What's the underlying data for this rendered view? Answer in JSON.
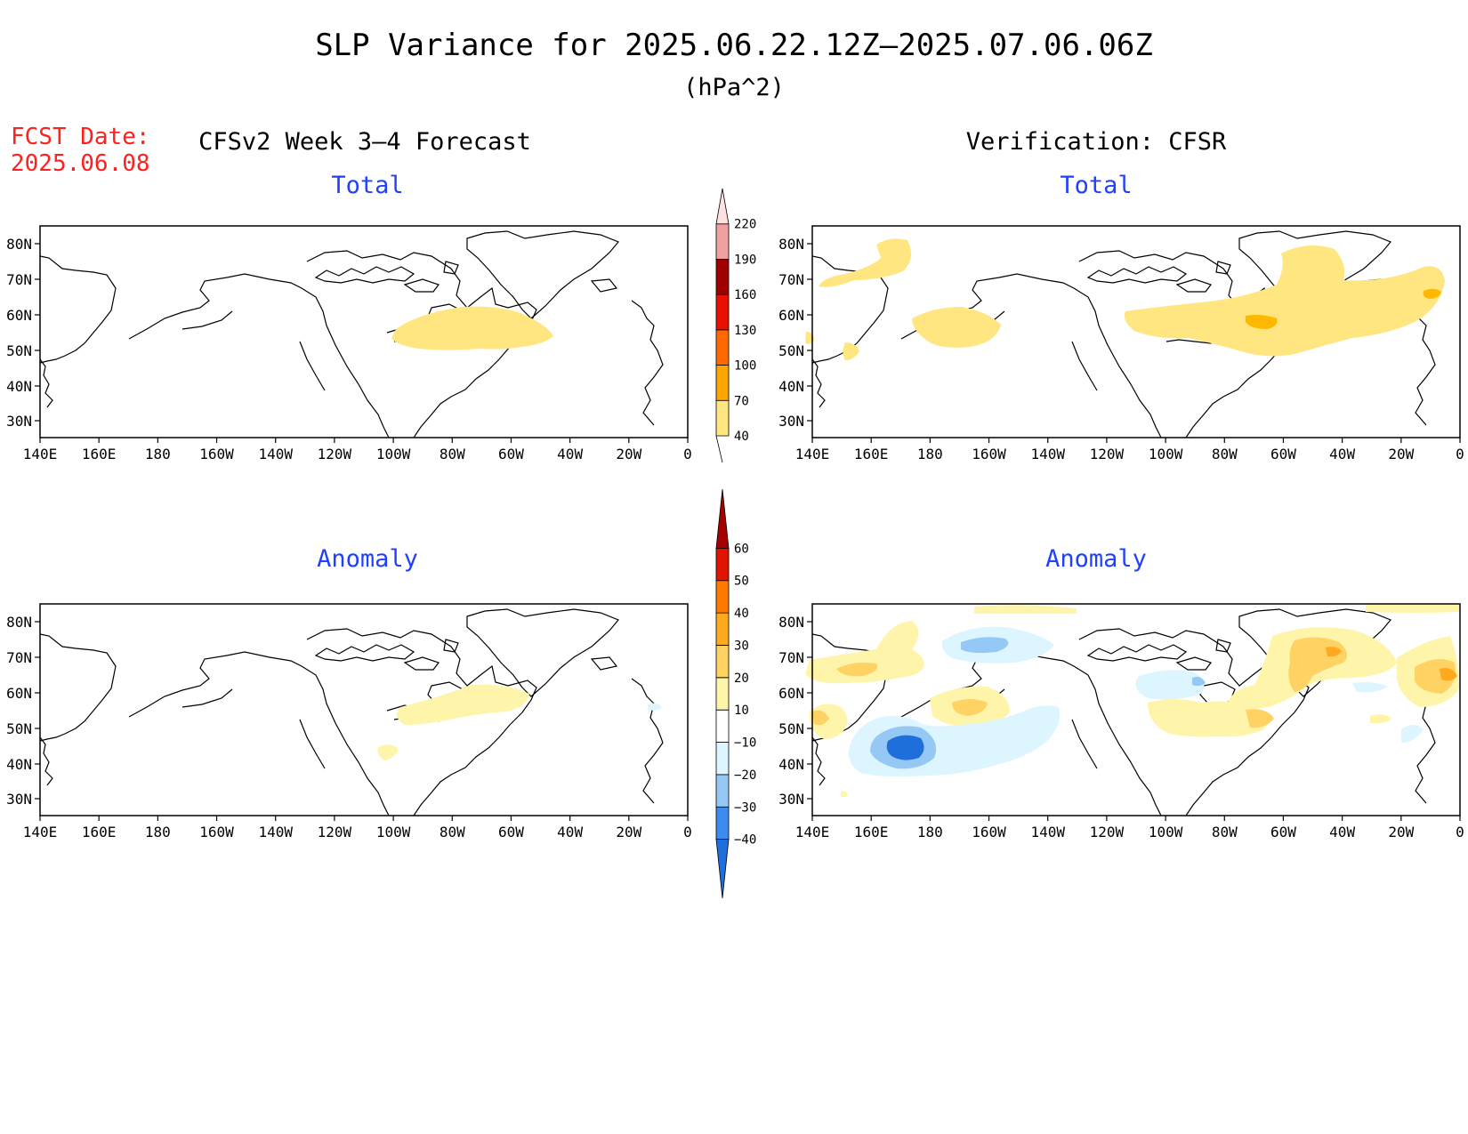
{
  "title": "SLP Variance for 2025.06.22.12Z–2025.07.06.06Z",
  "units": "(hPa^2)",
  "fcst_date_label": "FCST Date:",
  "fcst_date_value": "2025.06.08",
  "left_column_title": "CFSv2 Week 3–4 Forecast",
  "right_column_title": "Verification: CFSR",
  "panel_labels": {
    "fcst_total": "Total",
    "verif_total": "Total",
    "fcst_anomaly": "Anomaly",
    "verif_anomaly": "Anomaly"
  },
  "lat_ticks": [
    "80N",
    "70N",
    "60N",
    "50N",
    "40N",
    "30N"
  ],
  "lon_ticks": [
    "140E",
    "160E",
    "180",
    "160W",
    "140W",
    "120W",
    "100W",
    "80W",
    "60W",
    "40W",
    "20W",
    "0"
  ],
  "total_colorbar": {
    "labels": [
      "40",
      "70",
      "100",
      "130",
      "160",
      "190",
      "220"
    ],
    "colors": [
      "#ffe680",
      "#ffa500",
      "#ff6a00",
      "#e81000",
      "#a00000",
      "#f0a0a0",
      "#fde0e0"
    ]
  },
  "anomaly_colorbar": {
    "labels": [
      "−40",
      "−30",
      "−20",
      "−10",
      "10",
      "20",
      "30",
      "40",
      "50",
      "60"
    ],
    "colors": [
      "#1e6edc",
      "#3c8cf0",
      "#96c8f5",
      "#dcf5ff",
      "#ffffff",
      "#fff5aa",
      "#ffd264",
      "#ffaa1e",
      "#ff7800",
      "#e11400",
      "#a50000"
    ]
  }
}
